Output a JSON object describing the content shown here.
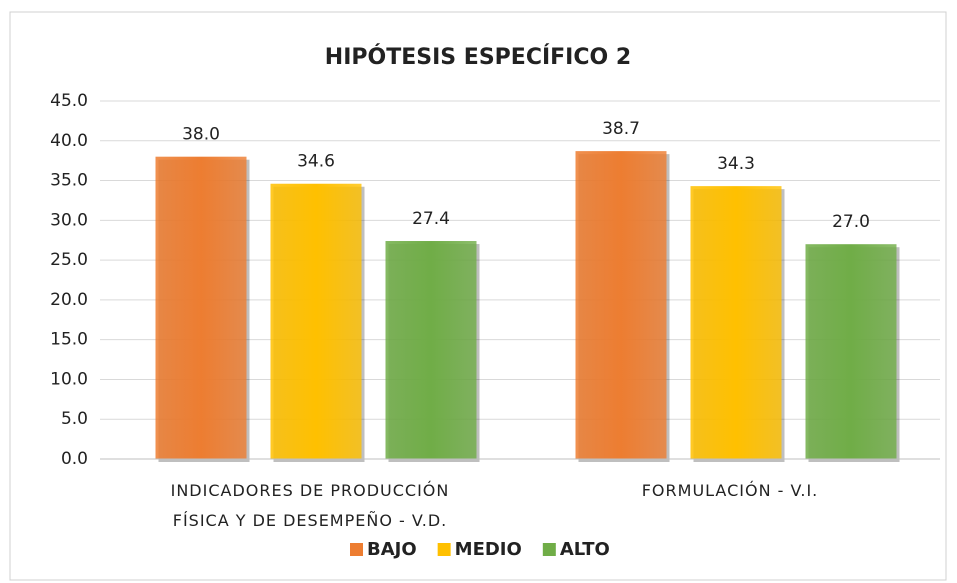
{
  "chart_data": {
    "type": "bar",
    "title": "HIPÓTESIS ESPECÍFICO 2",
    "categories": [
      "INDICADORES DE PRODUCCIÓN FÍSICA Y DE DESEMPEÑO - V.D.",
      "FORMULACIÓN - V.I."
    ],
    "series": [
      {
        "name": "BAJO",
        "color": "#ed7d31",
        "values": [
          38.0,
          38.7
        ],
        "value_labels": [
          "38.0",
          "38.7"
        ]
      },
      {
        "name": "MEDIO",
        "color": "#ffc000",
        "values": [
          34.6,
          34.3
        ],
        "value_labels": [
          "34.6",
          "34.3"
        ]
      },
      {
        "name": "ALTO",
        "color": "#70ad47",
        "values": [
          27.4,
          27.0
        ],
        "value_labels": [
          "27.4",
          "27.0"
        ]
      }
    ],
    "ylim": [
      0,
      45
    ],
    "yticks": [
      {
        "value": 0,
        "label": "0.0"
      },
      {
        "value": 5,
        "label": "5.0"
      },
      {
        "value": 10,
        "label": "10.0"
      },
      {
        "value": 15,
        "label": "15.0"
      },
      {
        "value": 20,
        "label": "20.0"
      },
      {
        "value": 25,
        "label": "25.0"
      },
      {
        "value": 30,
        "label": "30.0"
      },
      {
        "value": 35,
        "label": "35.0"
      },
      {
        "value": 40,
        "label": "40.0"
      },
      {
        "value": 45,
        "label": "45.0"
      }
    ],
    "grid": true,
    "legend": "bottom"
  }
}
